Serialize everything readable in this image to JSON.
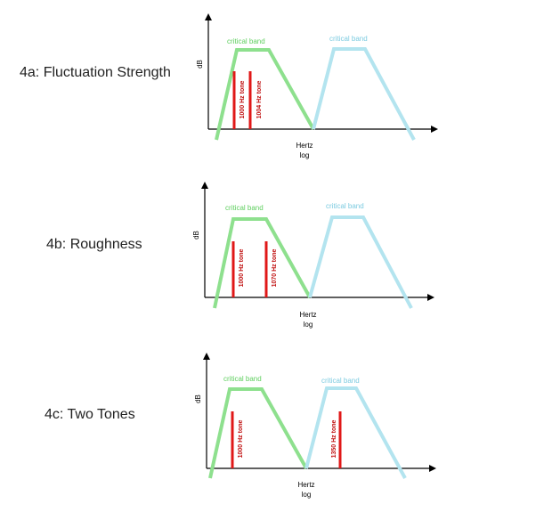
{
  "panels": [
    {
      "title": "4a: Fluctuation Strength",
      "y_label": "dB",
      "x_label_1": "Hertz",
      "x_label_2": "log",
      "band_green_label": "critical band",
      "band_blue_label": "critical band",
      "tone_1_label": "1000 Hz tone",
      "tone_2_label": "1004 Hz tone"
    },
    {
      "title": "4b: Roughness",
      "y_label": "dB",
      "x_label_1": "Hertz",
      "x_label_2": "log",
      "band_green_label": "critical band",
      "band_blue_label": "critical band",
      "tone_1_label": "1000 Hz tone",
      "tone_2_label": "1070 Hz tone"
    },
    {
      "title": "4c: Two Tones",
      "y_label": "dB",
      "x_label_1": "Hertz",
      "x_label_2": "log",
      "band_green_label": "critical band",
      "band_blue_label": "critical band",
      "tone_1_label": "1000 Hz tone",
      "tone_2_label": "1350 Hz tone"
    }
  ],
  "colors": {
    "critical_band_1": "#8ee08e",
    "critical_band_2": "#b3e4ef",
    "tone": "#e01818"
  }
}
